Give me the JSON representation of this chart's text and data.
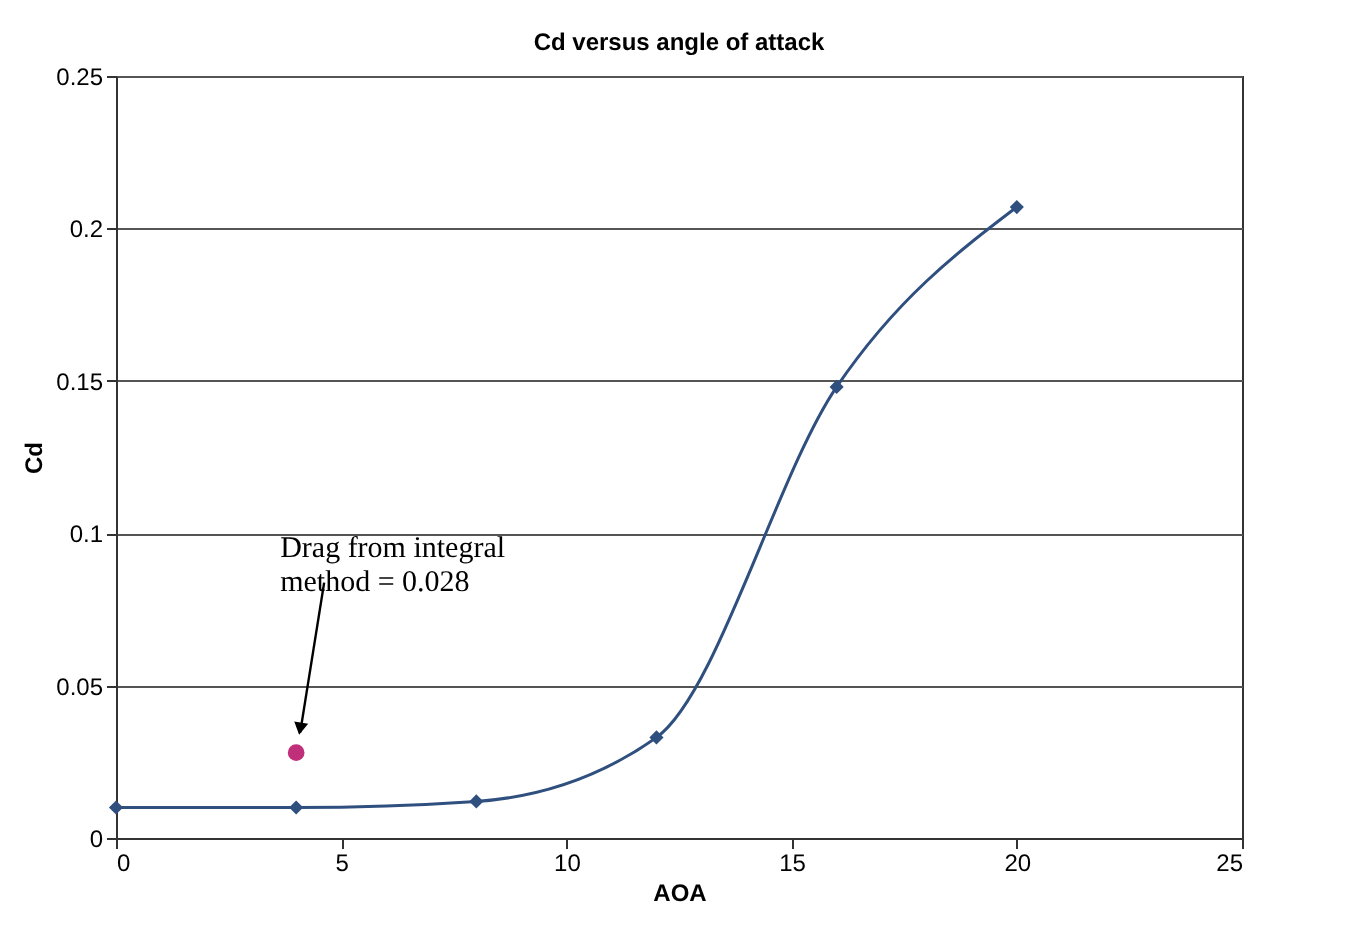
{
  "chart_data": {
    "type": "line",
    "title": "Cd versus angle of attack",
    "xlabel": "AOA",
    "ylabel": "Cd",
    "xlim": [
      0,
      25
    ],
    "xticks": [
      0,
      5,
      10,
      15,
      20,
      25
    ],
    "ylim": [
      0,
      0.25
    ],
    "yticks": [
      0,
      0.05,
      0.1,
      0.15,
      0.2,
      0.25
    ],
    "grid": "y",
    "marker": "diamond",
    "line_style": "solid",
    "series": [
      {
        "color": "#2f4f7f",
        "x": [
          0,
          4,
          8,
          12,
          16,
          20
        ],
        "values": [
          0.01,
          0.01,
          0.012,
          0.033,
          0.148,
          0.207
        ]
      },
      {
        "type": "scatter",
        "color": "#c0307a",
        "x": [
          4
        ],
        "values": [
          0.028
        ],
        "marker": "circle"
      }
    ],
    "annotations": [
      "Drag from integral\nmethod = 0.028"
    ]
  }
}
